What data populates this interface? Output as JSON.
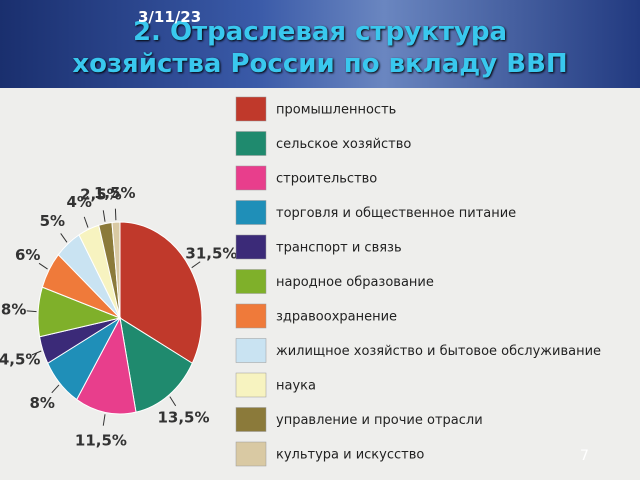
{
  "slide": {
    "date": "3/11/23",
    "number": "7"
  },
  "chart_data": {
    "type": "pie",
    "title": "2. Отраслевая структура хозяйства России по вкладу ВВП",
    "categories": [
      "промышленность",
      "сельское хозяйство",
      "строительство",
      "торговля и общественное питание",
      "транспорт и связь",
      "народное образование",
      "здравоохранение",
      "жилищное хозяйство и бытовое обслуживание",
      "наука",
      "управление и прочие отрасли",
      "культура и искусство"
    ],
    "values": [
      31.5,
      13.5,
      11.5,
      8,
      4.5,
      8,
      6,
      5,
      4,
      2.5,
      1.5
    ],
    "value_labels": [
      "31,5%",
      "13,5%",
      "11,5%",
      "8%",
      "4,5%",
      "8%",
      "6%",
      "5%",
      "4%",
      "2,5%",
      "1,5%"
    ],
    "colors": [
      "#c0392b",
      "#1f8a6e",
      "#e83e8c",
      "#1f8fb8",
      "#3b2a78",
      "#7fb02a",
      "#ef7a3a",
      "#c9e3f2",
      "#f7f3c0",
      "#8b7a3a",
      "#d9c9a3"
    ],
    "legend": "right"
  }
}
